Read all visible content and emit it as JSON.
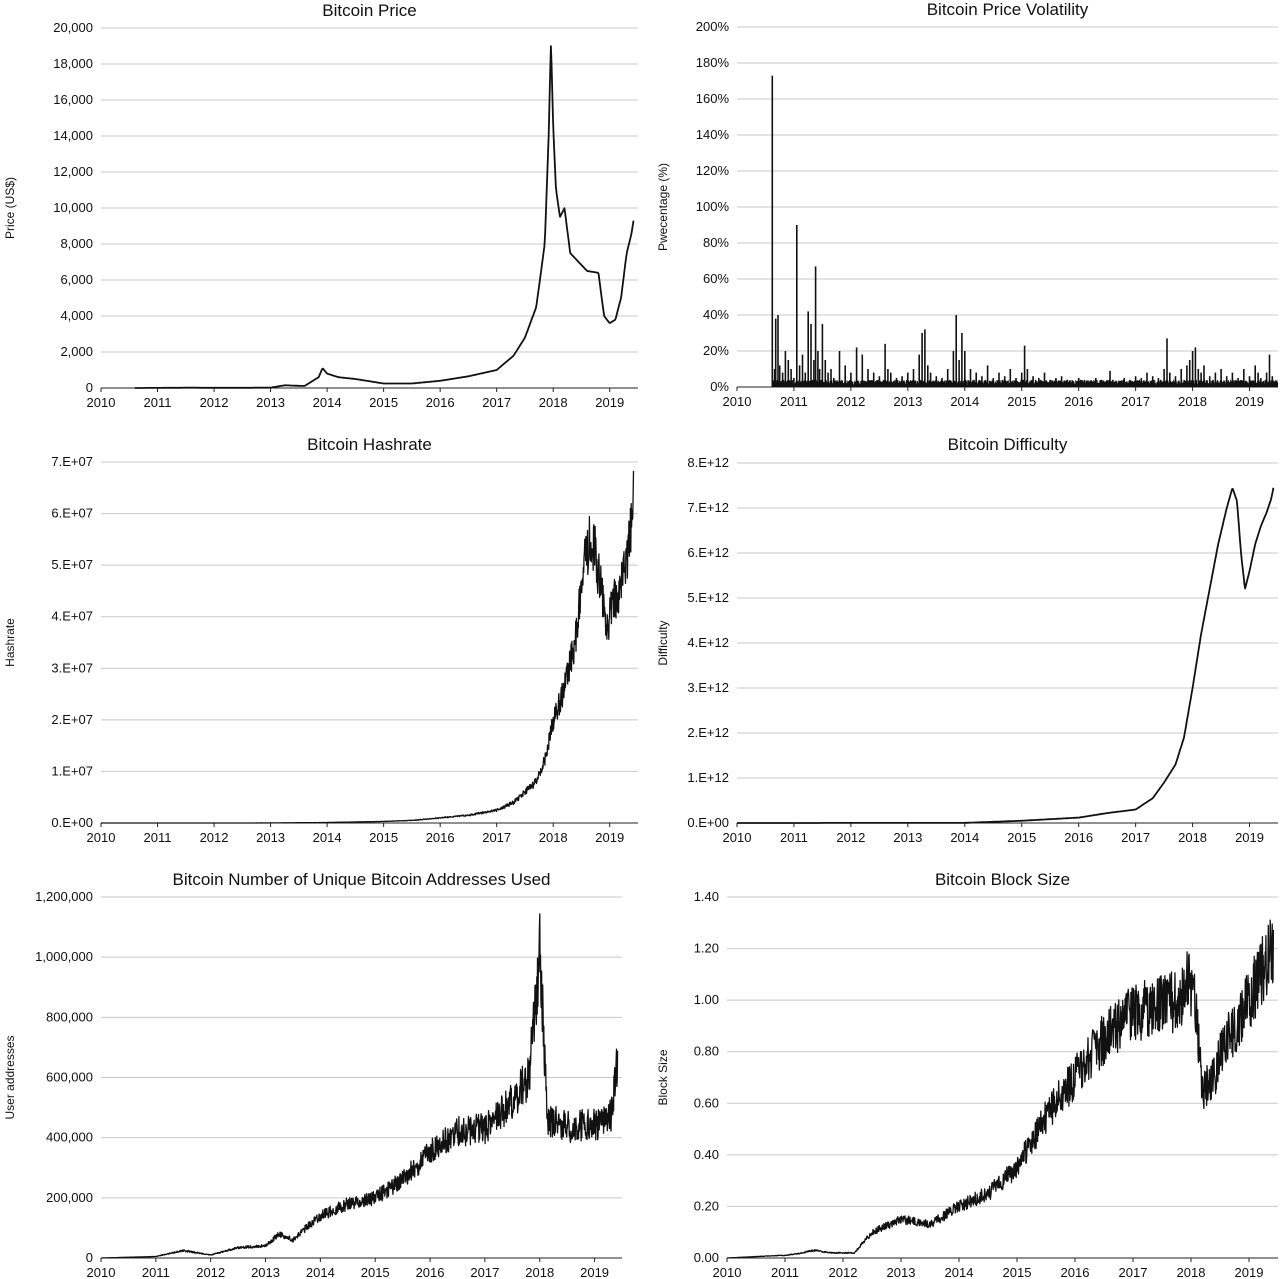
{
  "chart_data": [
    {
      "id": "price",
      "type": "line",
      "title": "Bitcoin Price",
      "xlabel": "",
      "ylabel": "Price (US$)",
      "xlim": [
        2010,
        2019.5
      ],
      "ylim": [
        0,
        20000
      ],
      "x_ticks": [
        "2010",
        "2011",
        "2012",
        "2013",
        "2014",
        "2015",
        "2016",
        "2017",
        "2018",
        "2019"
      ],
      "y_ticks": [
        "0",
        "2,000",
        "4,000",
        "6,000",
        "8,000",
        "10,000",
        "12,000",
        "14,000",
        "16,000",
        "18,000",
        "20,000"
      ],
      "grid": true,
      "series": [
        {
          "color": "#111111",
          "noise": 0,
          "x": [
            2010.6,
            2011.5,
            2012.5,
            2013.0,
            2013.25,
            2013.6,
            2013.85,
            2013.92,
            2014.0,
            2014.2,
            2014.5,
            2015.0,
            2015.5,
            2016.0,
            2016.5,
            2017.0,
            2017.3,
            2017.5,
            2017.7,
            2017.85,
            2017.92,
            2017.96,
            2018.0,
            2018.05,
            2018.12,
            2018.2,
            2018.3,
            2018.45,
            2018.6,
            2018.8,
            2018.9,
            2019.0,
            2019.1,
            2019.2,
            2019.3,
            2019.38,
            2019.42
          ],
          "y": [
            0,
            15,
            10,
            20,
            150,
            110,
            600,
            1100,
            800,
            600,
            500,
            250,
            250,
            400,
            650,
            1000,
            1800,
            2800,
            4500,
            8000,
            14000,
            19200,
            14500,
            11000,
            9500,
            10000,
            7500,
            7000,
            6500,
            6400,
            4000,
            3600,
            3800,
            5000,
            7500,
            8500,
            9300
          ]
        }
      ]
    },
    {
      "id": "volatility",
      "type": "bar",
      "title": "Bitcoin Price Volatility",
      "xlabel": "",
      "ylabel": "Pwecentage (%)",
      "xlim": [
        2010,
        2019.5
      ],
      "ylim": [
        0,
        200
      ],
      "x_ticks": [
        "2010",
        "2011",
        "2012",
        "2013",
        "2014",
        "2015",
        "2016",
        "2017",
        "2018",
        "2019"
      ],
      "y_ticks": [
        "0%",
        "20%",
        "40%",
        "60%",
        "80%",
        "100%",
        "120%",
        "140%",
        "160%",
        "180%",
        "200%"
      ],
      "grid": true,
      "series": [
        {
          "color": "#111111",
          "x": [
            2010.62,
            2010.66,
            2010.68,
            2010.72,
            2010.75,
            2010.8,
            2010.85,
            2010.9,
            2010.95,
            2011.0,
            2011.05,
            2011.1,
            2011.15,
            2011.2,
            2011.25,
            2011.3,
            2011.35,
            2011.38,
            2011.42,
            2011.45,
            2011.5,
            2011.55,
            2011.6,
            2011.65,
            2011.7,
            2011.8,
            2011.9,
            2012.0,
            2012.1,
            2012.2,
            2012.3,
            2012.4,
            2012.5,
            2012.6,
            2012.65,
            2012.7,
            2012.8,
            2012.9,
            2013.0,
            2013.1,
            2013.2,
            2013.25,
            2013.3,
            2013.35,
            2013.4,
            2013.5,
            2013.6,
            2013.7,
            2013.8,
            2013.85,
            2013.9,
            2013.95,
            2014.0,
            2014.1,
            2014.2,
            2014.3,
            2014.4,
            2014.5,
            2014.6,
            2014.7,
            2014.8,
            2014.9,
            2015.0,
            2015.05,
            2015.1,
            2015.2,
            2015.3,
            2015.4,
            2015.5,
            2015.6,
            2015.7,
            2015.8,
            2015.9,
            2016.0,
            2016.1,
            2016.2,
            2016.3,
            2016.4,
            2016.5,
            2016.55,
            2016.6,
            2016.7,
            2016.8,
            2016.9,
            2017.0,
            2017.1,
            2017.2,
            2017.3,
            2017.4,
            2017.5,
            2017.55,
            2017.6,
            2017.7,
            2017.8,
            2017.9,
            2017.95,
            2018.0,
            2018.05,
            2018.1,
            2018.15,
            2018.2,
            2018.3,
            2018.4,
            2018.5,
            2018.6,
            2018.7,
            2018.8,
            2018.9,
            2019.0,
            2019.1,
            2019.15,
            2019.2,
            2019.3,
            2019.35,
            2019.4
          ],
          "y": [
            173,
            10,
            38,
            40,
            12,
            8,
            20,
            15,
            10,
            5,
            90,
            12,
            18,
            8,
            42,
            35,
            15,
            67,
            20,
            10,
            35,
            15,
            8,
            10,
            5,
            20,
            12,
            8,
            22,
            18,
            10,
            8,
            6,
            24,
            10,
            8,
            5,
            6,
            8,
            10,
            18,
            30,
            32,
            12,
            8,
            6,
            5,
            10,
            20,
            40,
            15,
            30,
            20,
            10,
            8,
            6,
            12,
            5,
            8,
            6,
            10,
            5,
            8,
            23,
            10,
            6,
            5,
            8,
            4,
            5,
            6,
            4,
            3,
            5,
            4,
            3,
            5,
            4,
            3,
            9,
            4,
            3,
            5,
            4,
            6,
            5,
            8,
            6,
            5,
            10,
            27,
            8,
            6,
            10,
            12,
            15,
            20,
            22,
            10,
            8,
            12,
            6,
            8,
            10,
            6,
            8,
            5,
            10,
            6,
            12,
            8,
            5,
            8,
            18,
            6
          ]
        }
      ]
    },
    {
      "id": "hashrate",
      "type": "line",
      "title": "Bitcoin Hashrate",
      "xlabel": "",
      "ylabel": "Hashrate",
      "xlim": [
        2010,
        2019.5
      ],
      "ylim": [
        0,
        70000000
      ],
      "x_ticks": [
        "2010",
        "2011",
        "2012",
        "2013",
        "2014",
        "2015",
        "2016",
        "2017",
        "2018",
        "2019"
      ],
      "y_ticks": [
        "0.E+00",
        "1.E+07",
        "2.E+07",
        "3.E+07",
        "4.E+07",
        "5.E+07",
        "6.E+07",
        "7.E+07"
      ],
      "grid": true,
      "series": [
        {
          "color": "#111111",
          "noise": 0.1,
          "x": [
            2010.0,
            2013.0,
            2014.0,
            2015.0,
            2015.5,
            2016.0,
            2016.5,
            2017.0,
            2017.3,
            2017.5,
            2017.7,
            2017.85,
            2018.0,
            2018.2,
            2018.4,
            2018.55,
            2018.65,
            2018.75,
            2018.85,
            2018.95,
            2019.05,
            2019.15,
            2019.25,
            2019.35,
            2019.42
          ],
          "y": [
            0,
            10000,
            100000,
            300000,
            500000,
            1000000,
            1500000,
            2500000,
            4000000,
            6000000,
            8000000,
            12000000,
            20000000,
            26000000,
            36000000,
            50000000,
            55000000,
            52000000,
            45000000,
            38000000,
            42000000,
            45000000,
            48000000,
            55000000,
            65000000
          ]
        }
      ]
    },
    {
      "id": "difficulty",
      "type": "line",
      "title": "Bitcoin Difficulty",
      "xlabel": "",
      "ylabel": "Difficulty",
      "xlim": [
        2010,
        2019.5
      ],
      "ylim": [
        0,
        8000000000000
      ],
      "x_ticks": [
        "2010",
        "2011",
        "2012",
        "2013",
        "2014",
        "2015",
        "2016",
        "2017",
        "2018",
        "2019"
      ],
      "y_ticks": [
        "0.E+00",
        "1.E+12",
        "2.E+12",
        "3.E+12",
        "4.E+12",
        "5.E+12",
        "6.E+12",
        "7.E+12",
        "8.E+12"
      ],
      "grid": true,
      "series": [
        {
          "color": "#111111",
          "noise": 0,
          "x": [
            2010.0,
            2014.0,
            2015.0,
            2016.0,
            2016.5,
            2017.0,
            2017.3,
            2017.5,
            2017.7,
            2017.85,
            2018.0,
            2018.15,
            2018.3,
            2018.45,
            2018.6,
            2018.7,
            2018.78,
            2018.85,
            2018.92,
            2019.0,
            2019.1,
            2019.2,
            2019.3,
            2019.38,
            2019.42
          ],
          "y": [
            0,
            3000000000,
            50000000000,
            120000000000,
            220000000000,
            300000000000,
            550000000000,
            900000000000,
            1300000000000,
            1900000000000,
            3000000000000,
            4200000000000,
            5200000000000,
            6200000000000,
            7000000000000,
            7450000000000,
            7150000000000,
            6000000000000,
            5200000000000,
            5600000000000,
            6200000000000,
            6600000000000,
            6900000000000,
            7200000000000,
            7450000000000
          ]
        }
      ]
    },
    {
      "id": "addresses",
      "type": "line",
      "title": "Bitcoin Number of Unique Bitcoin Addresses Used",
      "xlabel": "",
      "ylabel": "User addresses",
      "xlim": [
        2010,
        2019.5
      ],
      "ylim": [
        0,
        1200000
      ],
      "x_ticks": [
        "2010",
        "2011",
        "2012",
        "2013",
        "2014",
        "2015",
        "2016",
        "2017",
        "2018",
        "2019"
      ],
      "y_ticks": [
        "0",
        "200,000",
        "400,000",
        "600,000",
        "800,000",
        "1,000,000",
        "1,200,000"
      ],
      "grid": true,
      "series": [
        {
          "color": "#111111",
          "noise": 0.12,
          "x": [
            2010.0,
            2011.0,
            2011.5,
            2012.0,
            2012.5,
            2013.0,
            2013.25,
            2013.5,
            2013.8,
            2014.0,
            2014.5,
            2015.0,
            2015.5,
            2016.0,
            2016.5,
            2017.0,
            2017.5,
            2017.8,
            2017.95,
            2018.0,
            2018.08,
            2018.15,
            2018.3,
            2018.6,
            2018.9,
            2019.1,
            2019.3,
            2019.42
          ],
          "y": [
            0,
            5000,
            25000,
            10000,
            35000,
            40000,
            80000,
            60000,
            110000,
            140000,
            180000,
            200000,
            260000,
            350000,
            420000,
            430000,
            520000,
            600000,
            900000,
            1050000,
            700000,
            450000,
            450000,
            430000,
            450000,
            440000,
            480000,
            650000
          ]
        }
      ]
    },
    {
      "id": "blocksize",
      "type": "line",
      "title": "Bitcoin Block Size",
      "xlabel": "",
      "ylabel": "Block Size",
      "xlim": [
        2010,
        2019.5
      ],
      "ylim": [
        0,
        1.4
      ],
      "x_ticks": [
        "2010",
        "2011",
        "2012",
        "2013",
        "2014",
        "2015",
        "2016",
        "2017",
        "2018",
        "2019"
      ],
      "y_ticks": [
        "0.00",
        "0.20",
        "0.40",
        "0.60",
        "0.80",
        "1.00",
        "1.20",
        "1.40"
      ],
      "grid": true,
      "series": [
        {
          "color": "#111111",
          "noise": 0.12,
          "x": [
            2010.0,
            2010.9,
            2011.0,
            2011.3,
            2011.5,
            2011.8,
            2012.0,
            2012.2,
            2012.5,
            2013.0,
            2013.5,
            2014.0,
            2014.5,
            2015.0,
            2015.5,
            2016.0,
            2016.5,
            2017.0,
            2017.5,
            2017.8,
            2017.95,
            2018.05,
            2018.2,
            2018.4,
            2018.6,
            2018.8,
            2019.0,
            2019.2,
            2019.42
          ],
          "y": [
            0,
            0.01,
            0.01,
            0.02,
            0.03,
            0.02,
            0.02,
            0.02,
            0.1,
            0.15,
            0.13,
            0.2,
            0.25,
            0.35,
            0.55,
            0.7,
            0.85,
            0.95,
            0.98,
            1.0,
            1.08,
            1.05,
            0.65,
            0.7,
            0.85,
            0.9,
            1.0,
            1.1,
            1.2
          ]
        }
      ]
    }
  ]
}
